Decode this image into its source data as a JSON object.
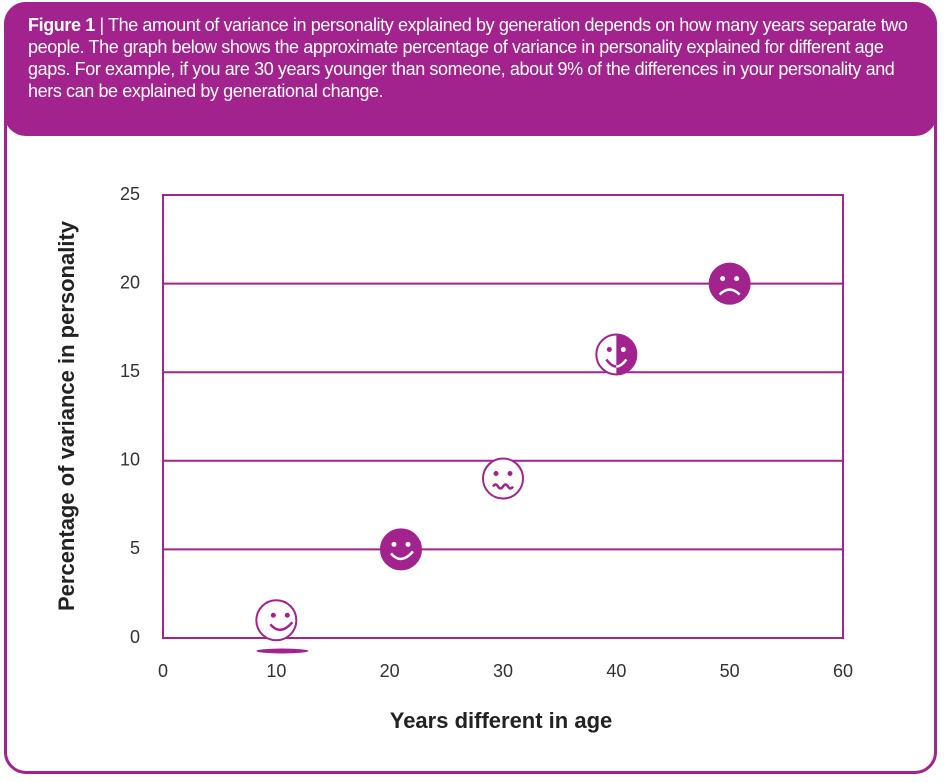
{
  "chart_data": {
    "type": "scatter",
    "figure_label": "Figure 1",
    "title": "| The amount of variance in personality explained by generation depends on how many years separate two people. The graph below shows the approximate percentage of variance in personality explained for different age gaps. For example, if you are 30 years younger than someone, about 9% of the differences in your personality and hers can be explained by generational change.",
    "x_label": "Years different in age",
    "y_label": "Percentage of variance in personality",
    "x": [
      10,
      21,
      30,
      40,
      50
    ],
    "values": [
      1,
      5,
      9,
      16,
      20
    ],
    "color": "#a3238e",
    "xlim": [
      0,
      60
    ],
    "xticks": [
      0,
      10,
      20,
      30,
      40,
      50,
      60
    ],
    "ylim": [
      0,
      25
    ],
    "yticks": [
      0,
      5,
      10,
      15,
      20,
      25
    ],
    "grid": true
  }
}
